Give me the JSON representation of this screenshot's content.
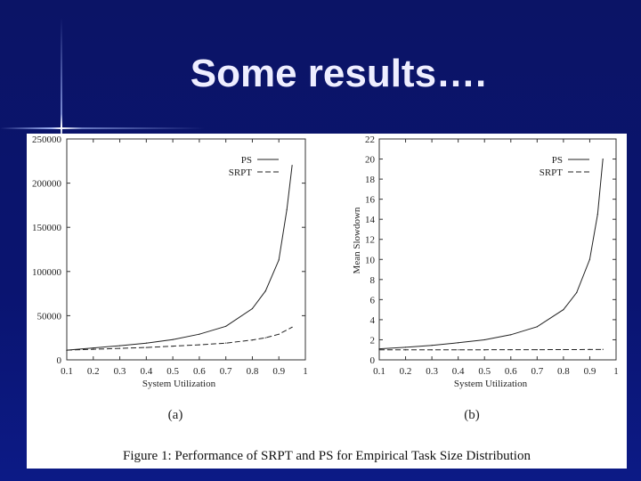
{
  "slide": {
    "title": "Some results…."
  },
  "caption": "Figure 1: Performance of SRPT and PS for Empirical Task Size Distribution",
  "chart_data": [
    {
      "type": "line",
      "panel_label": "(a)",
      "xlabel": "System Utilization",
      "ylabel": "",
      "xlim": [
        0.1,
        1.0
      ],
      "ylim": [
        0,
        250000
      ],
      "xticks": [
        "0.1",
        "0.2",
        "0.3",
        "0.4",
        "0.5",
        "0.6",
        "0.7",
        "0.8",
        "0.9",
        "1"
      ],
      "yticks": [
        "0",
        "50000",
        "100000",
        "150000",
        "200000",
        "250000"
      ],
      "legend_position": "top-right",
      "series": [
        {
          "name": "PS",
          "style": "solid",
          "x": [
            0.1,
            0.2,
            0.3,
            0.4,
            0.5,
            0.6,
            0.7,
            0.8,
            0.85,
            0.9,
            0.93,
            0.95
          ],
          "y": [
            11000,
            13500,
            16000,
            19000,
            23000,
            29000,
            38000,
            58000,
            78000,
            113000,
            170000,
            220000
          ]
        },
        {
          "name": "SRPT",
          "style": "dashed",
          "x": [
            0.1,
            0.2,
            0.3,
            0.4,
            0.5,
            0.6,
            0.7,
            0.8,
            0.85,
            0.9,
            0.95
          ],
          "y": [
            11000,
            12000,
            13000,
            14000,
            15500,
            17000,
            19000,
            22500,
            25000,
            29000,
            37000
          ]
        }
      ]
    },
    {
      "type": "line",
      "panel_label": "(b)",
      "xlabel": "System Utilization",
      "ylabel": "Mean Slowdown",
      "xlim": [
        0.1,
        1.0
      ],
      "ylim": [
        0,
        22
      ],
      "xticks": [
        "0.1",
        "0.2",
        "0.3",
        "0.4",
        "0.5",
        "0.6",
        "0.7",
        "0.8",
        "0.9",
        "1"
      ],
      "yticks": [
        "0",
        "2",
        "4",
        "6",
        "8",
        "10",
        "12",
        "14",
        "16",
        "18",
        "20",
        "22"
      ],
      "legend_position": "top-right",
      "series": [
        {
          "name": "PS",
          "style": "solid",
          "x": [
            0.1,
            0.2,
            0.3,
            0.4,
            0.5,
            0.6,
            0.7,
            0.8,
            0.85,
            0.9,
            0.93,
            0.95
          ],
          "y": [
            1.1,
            1.25,
            1.45,
            1.7,
            2.0,
            2.5,
            3.3,
            5.0,
            6.7,
            10.0,
            14.5,
            20.0
          ]
        },
        {
          "name": "SRPT",
          "style": "dashed",
          "x": [
            0.1,
            0.2,
            0.3,
            0.4,
            0.5,
            0.6,
            0.7,
            0.8,
            0.9,
            0.95
          ],
          "y": [
            1.0,
            1.0,
            1.0,
            1.0,
            1.0,
            1.01,
            1.01,
            1.02,
            1.03,
            1.04
          ]
        }
      ]
    }
  ]
}
